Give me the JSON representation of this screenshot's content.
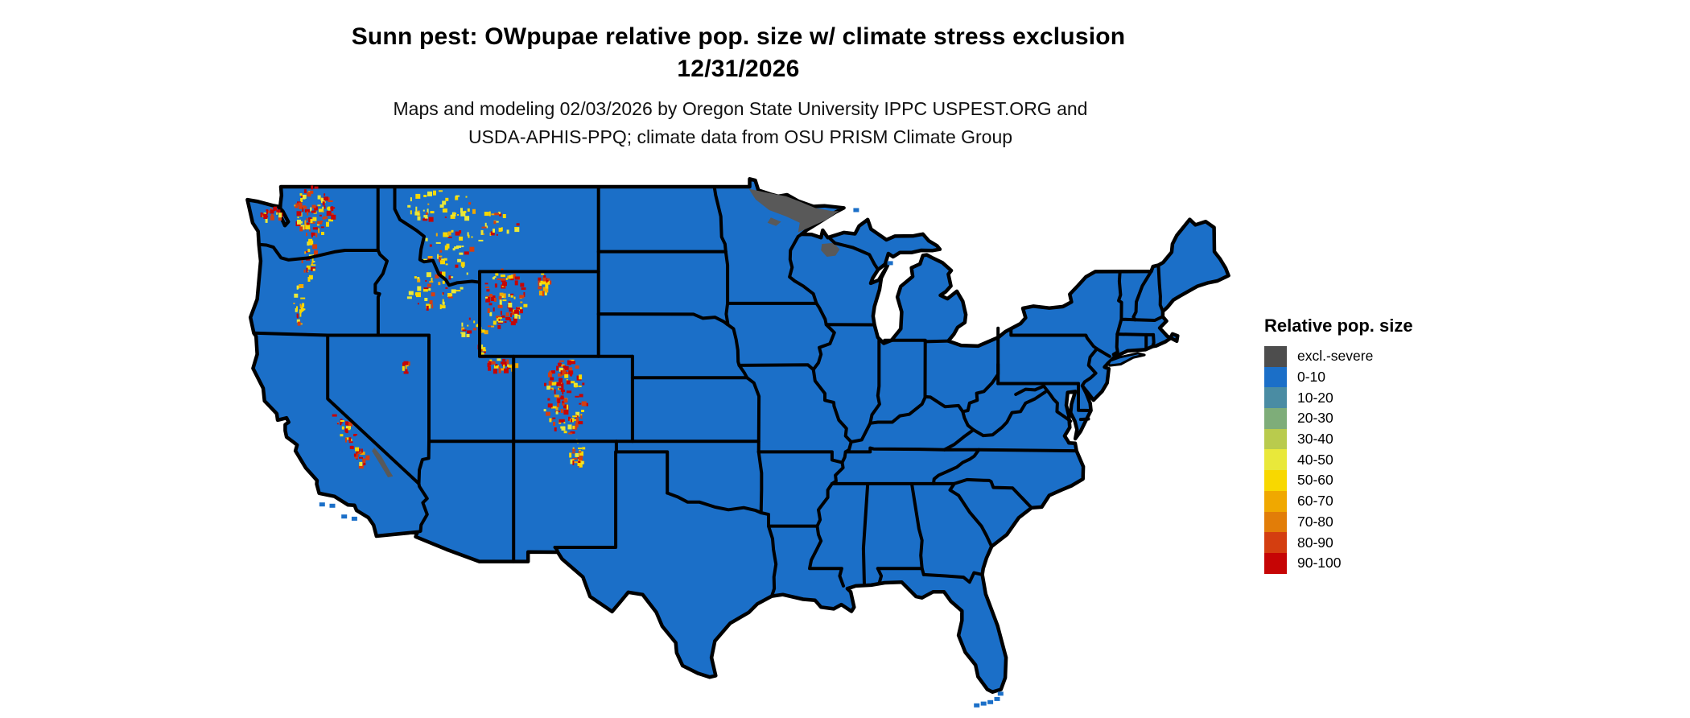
{
  "title": {
    "line1": "Sunn pest: OWpupae relative pop. size w/ climate stress exclusion",
    "line2": "12/31/2026"
  },
  "subtitle": {
    "line1": "Maps and modeling 02/03/2026 by Oregon State University IPPC USPEST.ORG and",
    "line2": "USDA-APHIS-PPQ; climate data from OSU PRISM Climate Group"
  },
  "legend": {
    "title": "Relative pop. size",
    "items": [
      {
        "label": "excl.-severe",
        "color": "#4d4d4d"
      },
      {
        "label": "0-10",
        "color": "#1b6fc8"
      },
      {
        "label": "10-20",
        "color": "#4a8ca3"
      },
      {
        "label": "20-30",
        "color": "#7ead79"
      },
      {
        "label": "30-40",
        "color": "#b9cb4d"
      },
      {
        "label": "40-50",
        "color": "#e9e83a"
      },
      {
        "label": "50-60",
        "color": "#f8d800"
      },
      {
        "label": "60-70",
        "color": "#f0a800"
      },
      {
        "label": "70-80",
        "color": "#e27d08"
      },
      {
        "label": "80-90",
        "color": "#d43e10"
      },
      {
        "label": "90-100",
        "color": "#c60505"
      }
    ]
  },
  "map": {
    "region": "contiguous United States",
    "base_category": "0-10",
    "fill_color": "#1b6fc8",
    "border_color": "#000000",
    "water_color": "#ffffff",
    "exclusion_patch_color": "#595959",
    "excluded_areas": [
      "northeastern Minnesota",
      "northern Wisconsin",
      "Death Valley area CA/NV"
    ],
    "hotspot_areas": [
      "WA Cascades",
      "Olympic Mtns",
      "N Idaho / NW Montana",
      "Bitterroots",
      "Central Idaho",
      "Yellowstone / Wind River WY",
      "Bighorn Mtns",
      "Uinta Mtns",
      "Wasatch",
      "Colorado Rockies",
      "Sangre de Cristo NM",
      "Sierra Nevada",
      "Oregon Cascades"
    ]
  }
}
